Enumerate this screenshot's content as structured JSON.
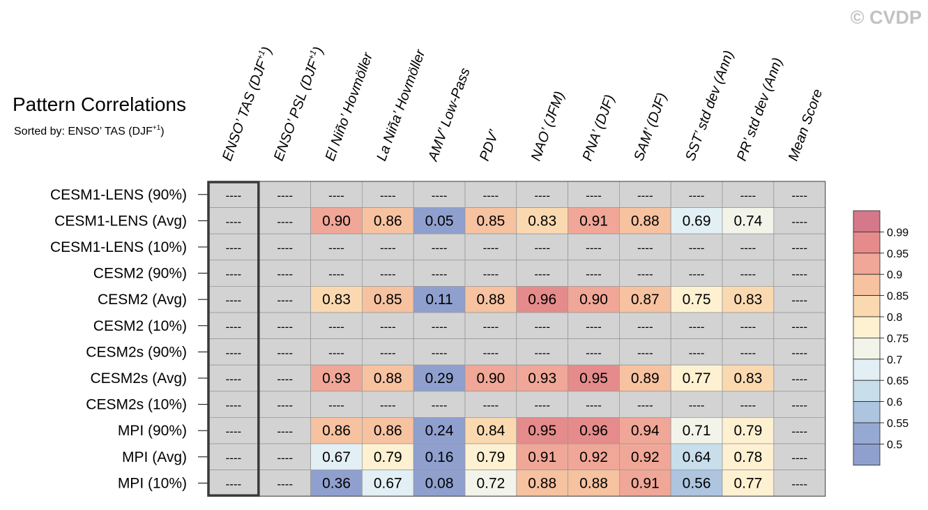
{
  "watermark": "© CVDP",
  "title": "Pattern Correlations",
  "subtitle": {
    "prefix": "Sorted by: ENSO’ TAS (DJF",
    "sup": "+1",
    "suffix": ")"
  },
  "missing_label": "----",
  "chart_data": {
    "type": "table",
    "title": "Pattern Correlations",
    "sorted_by": "ENSO’ TAS (DJF+1)",
    "columns": [
      {
        "label": "ENSO’ TAS (DJF",
        "sup": "+1",
        "tail": ")"
      },
      {
        "label": "ENSO’ PSL (DJF",
        "sup": "+1",
        "tail": ")"
      },
      {
        "label": "El Niño’ Hovmöller"
      },
      {
        "label": "La Niña’ Hovmöller"
      },
      {
        "label": "AMV’ Low-Pass"
      },
      {
        "label": "PDV’"
      },
      {
        "label": "NAO’ (JFM)"
      },
      {
        "label": "PNA’ (DJF)"
      },
      {
        "label": "SAM’ (DJF)"
      },
      {
        "label": "SST’ std dev (Ann)"
      },
      {
        "label": "PR’ std dev (Ann)"
      },
      {
        "label": "Mean Score"
      }
    ],
    "rows": [
      {
        "label": "CESM1-LENS (90%)",
        "values": [
          null,
          null,
          null,
          null,
          null,
          null,
          null,
          null,
          null,
          null,
          null,
          null
        ]
      },
      {
        "label": "CESM1-LENS (Avg)",
        "values": [
          null,
          null,
          0.9,
          0.86,
          0.05,
          0.85,
          0.83,
          0.91,
          0.88,
          0.69,
          0.74,
          null
        ]
      },
      {
        "label": "CESM1-LENS (10%)",
        "values": [
          null,
          null,
          null,
          null,
          null,
          null,
          null,
          null,
          null,
          null,
          null,
          null
        ]
      },
      {
        "label": "CESM2 (90%)",
        "values": [
          null,
          null,
          null,
          null,
          null,
          null,
          null,
          null,
          null,
          null,
          null,
          null
        ]
      },
      {
        "label": "CESM2 (Avg)",
        "values": [
          null,
          null,
          0.83,
          0.85,
          0.11,
          0.88,
          0.96,
          0.9,
          0.87,
          0.75,
          0.83,
          null
        ]
      },
      {
        "label": "CESM2 (10%)",
        "values": [
          null,
          null,
          null,
          null,
          null,
          null,
          null,
          null,
          null,
          null,
          null,
          null
        ]
      },
      {
        "label": "CESM2s (90%)",
        "values": [
          null,
          null,
          null,
          null,
          null,
          null,
          null,
          null,
          null,
          null,
          null,
          null
        ]
      },
      {
        "label": "CESM2s (Avg)",
        "values": [
          null,
          null,
          0.93,
          0.88,
          0.29,
          0.9,
          0.93,
          0.95,
          0.89,
          0.77,
          0.83,
          null
        ]
      },
      {
        "label": "CESM2s (10%)",
        "values": [
          null,
          null,
          null,
          null,
          null,
          null,
          null,
          null,
          null,
          null,
          null,
          null
        ]
      },
      {
        "label": "MPI (90%)",
        "values": [
          null,
          null,
          0.86,
          0.86,
          0.24,
          0.84,
          0.95,
          0.96,
          0.94,
          0.71,
          0.79,
          null
        ]
      },
      {
        "label": "MPI (Avg)",
        "values": [
          null,
          null,
          0.67,
          0.79,
          0.16,
          0.79,
          0.91,
          0.92,
          0.92,
          0.64,
          0.78,
          null
        ]
      },
      {
        "label": "MPI (10%)",
        "values": [
          null,
          null,
          0.36,
          0.67,
          0.08,
          0.72,
          0.88,
          0.88,
          0.91,
          0.56,
          0.77,
          null
        ]
      }
    ],
    "colorbar": {
      "labels": [
        "0.99",
        "0.95",
        "0.9",
        "0.85",
        "0.8",
        "0.75",
        "0.7",
        "0.65",
        "0.6",
        "0.55",
        "0.5"
      ],
      "colors": [
        "#d4788a",
        "#e58b8b",
        "#f0a797",
        "#f6c2a0",
        "#fbd9b0",
        "#fdf1d2",
        "#f2f4ea",
        "#e2eff4",
        "#c8deeb",
        "#adc5df",
        "#95a9d3",
        "#8fa0cf"
      ]
    },
    "missing_color": "#d3d3d3",
    "highlight_column": "ENSO’ TAS (DJF+1)"
  }
}
